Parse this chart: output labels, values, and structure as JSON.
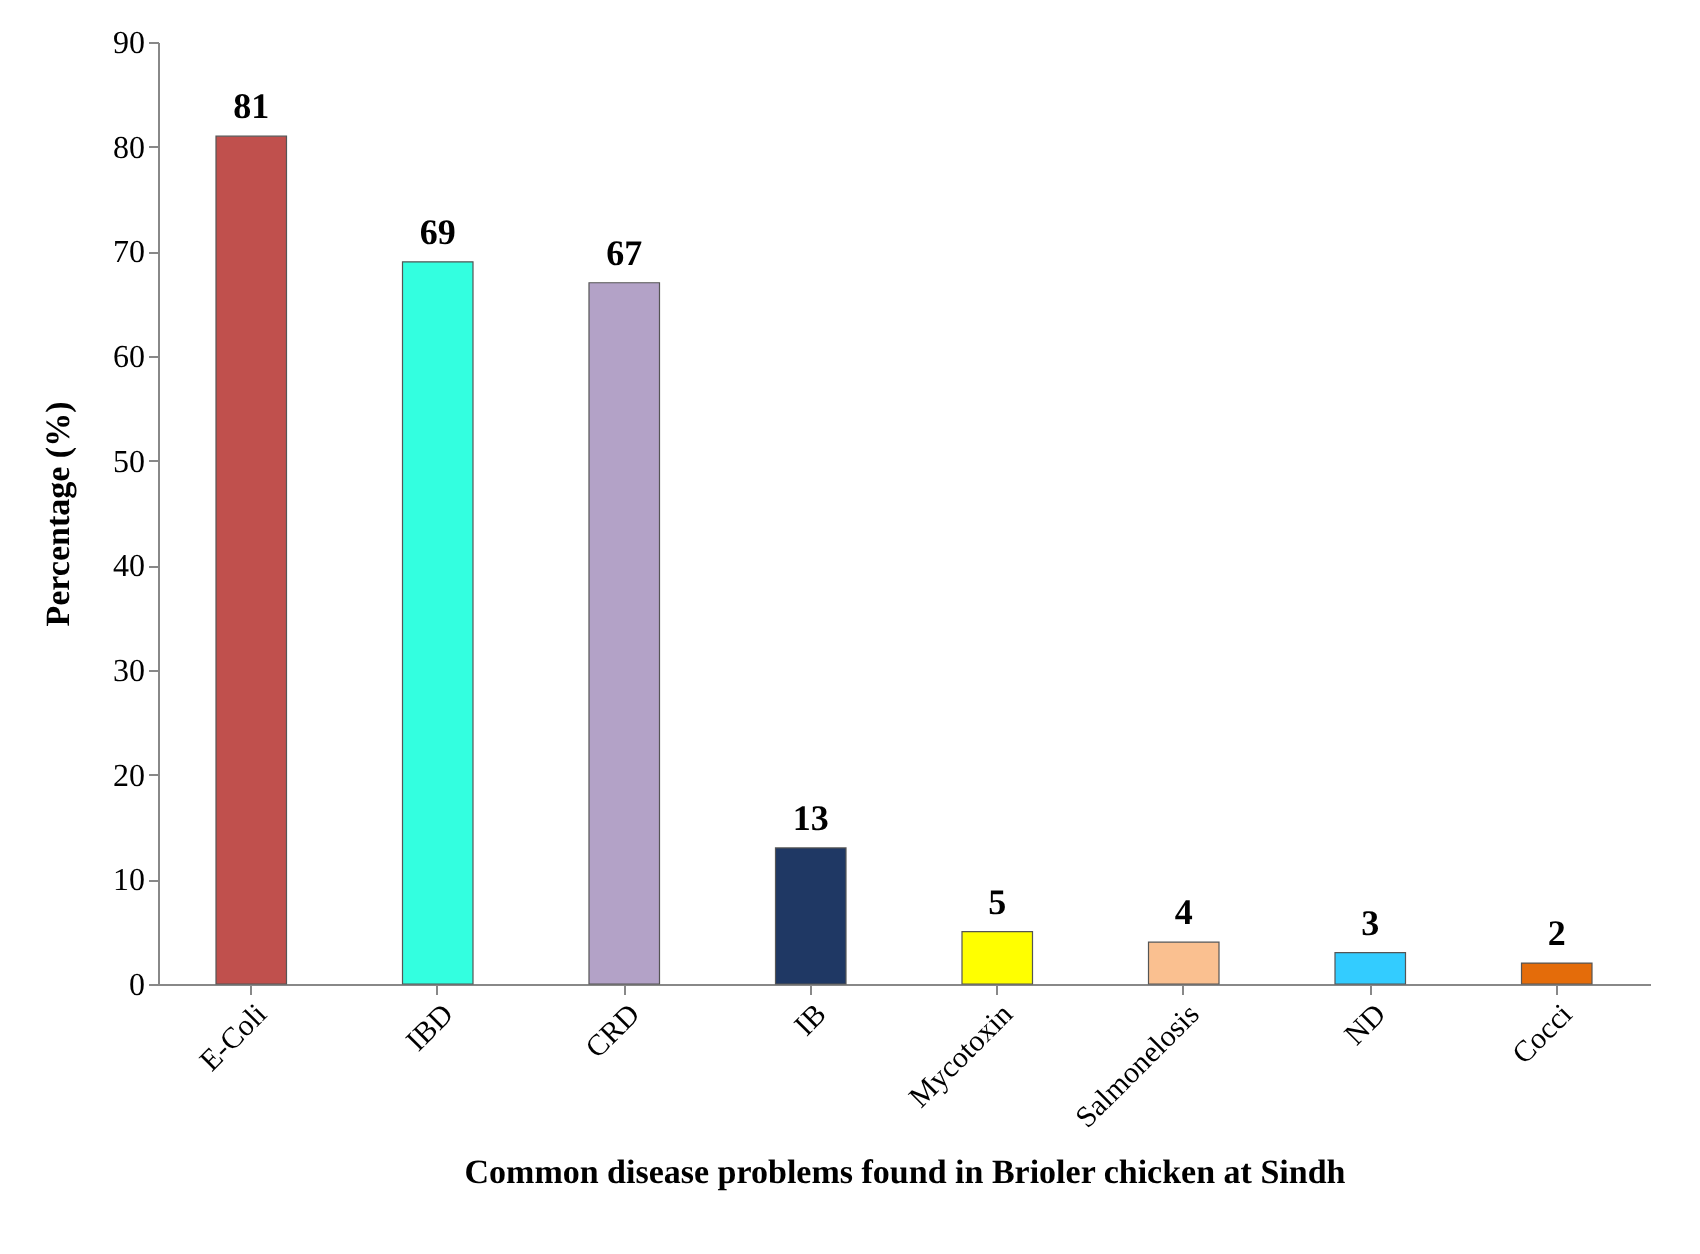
{
  "chart_data": {
    "type": "bar",
    "xlabel": "Common disease problems found in Brioler chicken at Sindh",
    "ylabel": "Percentage (%)",
    "categories": [
      "E-Coli",
      "IBD",
      "CRD",
      "IB",
      "Mycotoxin",
      "Salmonelosis",
      "ND",
      "Cocci"
    ],
    "values": [
      81,
      69,
      67,
      13,
      5,
      4,
      3,
      2
    ],
    "colors": [
      "#c0504d",
      "#33ffe0",
      "#b3a2c7",
      "#1f3864",
      "#ffff00",
      "#fac090",
      "#33ccff",
      "#e46c0a"
    ],
    "ylim": [
      0,
      90
    ],
    "yticks": [
      0,
      10,
      20,
      30,
      40,
      50,
      60,
      70,
      80,
      90
    ],
    "data_labels": true,
    "grid": false,
    "legend": false
  }
}
